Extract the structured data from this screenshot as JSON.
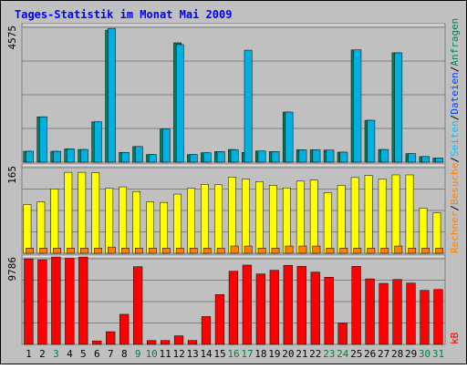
{
  "chart_data": {
    "type": "bar",
    "title": "Tages-Statistik im Monat Mai 2009",
    "categories": [
      "1",
      "2",
      "3",
      "4",
      "5",
      "6",
      "7",
      "8",
      "9",
      "10",
      "11",
      "12",
      "13",
      "14",
      "15",
      "16",
      "17",
      "18",
      "19",
      "20",
      "21",
      "22",
      "23",
      "24",
      "25",
      "26",
      "27",
      "28",
      "29",
      "30",
      "31"
    ],
    "category_colors": [
      "#000000",
      "#000000",
      "#008040",
      "#000000",
      "#000000",
      "#000000",
      "#000000",
      "#000000",
      "#008040",
      "#008040",
      "#000000",
      "#000000",
      "#000000",
      "#000000",
      "#000000",
      "#008040",
      "#008040",
      "#000000",
      "#000000",
      "#000000",
      "#000000",
      "#000000",
      "#008040",
      "#008040",
      "#000000",
      "#000000",
      "#000000",
      "#000000",
      "#000000",
      "#008040",
      "#008040"
    ],
    "panels": [
      {
        "id": "top",
        "ymax_label": "4575",
        "ylim": [
          0,
          4575
        ],
        "series": [
          {
            "name": "Anfragen",
            "color": "#00805c",
            "values": [
              370,
              1540,
              370,
              450,
              430,
              1370,
              4480,
              330,
              530,
              260,
              1120,
              4050,
              260,
              320,
              360,
              430,
              330,
              380,
              360,
              1700,
              420,
              420,
              410,
              340,
              3810,
              1420,
              430,
              3710,
              290,
              190,
              140
            ]
          },
          {
            "name": "Seiten",
            "color": "#0000ff",
            "values": [],
            "note_unused": true
          },
          {
            "name": "Dateien",
            "color": "#00b0e0",
            "values": [
              370,
              1540,
              370,
              450,
              430,
              1370,
              4540,
              330,
              530,
              260,
              1120,
              3990,
              260,
              320,
              360,
              420,
              3800,
              380,
              360,
              1700,
              420,
              420,
              410,
              340,
              3810,
              1420,
              430,
              3710,
              290,
              190,
              140
            ]
          }
        ]
      },
      {
        "id": "middle",
        "ymax_label": "165",
        "ylim": [
          0,
          165
        ],
        "series": [
          {
            "name": "Besuche",
            "color": "#ffff00",
            "values": [
              94,
              99,
              124,
              156,
              156,
              155,
              125,
              128,
              119,
              99,
              98,
              114,
              125,
              133,
              132,
              147,
              143,
              138,
              131,
              126,
              139,
              141,
              117,
              131,
              146,
              150,
              143,
              151,
              151,
              87,
              78
            ]
          },
          {
            "name": "Rechner",
            "color": "#ff8000",
            "values": [
              10,
              10,
              10,
              10,
              10,
              10,
              12,
              10,
              10,
              10,
              10,
              10,
              10,
              10,
              10,
              14,
              14,
              10,
              10,
              14,
              14,
              14,
              10,
              10,
              10,
              10,
              10,
              14,
              10,
              10,
              10
            ]
          }
        ]
      },
      {
        "id": "bottom",
        "ymax_label": "9786",
        "ylim": [
          0,
          9786
        ],
        "series": [
          {
            "name": "kB",
            "color": "#ff0000",
            "values": [
              9780,
              9670,
              9990,
              9840,
              9990,
              400,
              1450,
              3440,
              8880,
              440,
              440,
              980,
              450,
              3180,
              5690,
              8360,
              9060,
              8050,
              8470,
              9030,
              8920,
              8260,
              7680,
              2450,
              8920,
              7490,
              6970,
              7420,
              7010,
              6170,
              6270
            ]
          }
        ]
      }
    ],
    "right_legend": [
      {
        "text": "Anfragen",
        "color": "#00805c"
      },
      {
        "text": "/",
        "color": "#000000"
      },
      {
        "text": "Dateien",
        "color": "#0040ff"
      },
      {
        "text": "/",
        "color": "#000000"
      },
      {
        "text": "Seiten",
        "color": "#00c0ff"
      },
      {
        "text": "/",
        "color": "#000000"
      },
      {
        "text": "Besuche",
        "color": "#ff8000"
      },
      {
        "text": "/",
        "color": "#000000"
      },
      {
        "text": "Rechner",
        "color": "#ff8000"
      }
    ],
    "right_legend_bottom": {
      "text": "kB",
      "color": "#ff0000"
    }
  }
}
